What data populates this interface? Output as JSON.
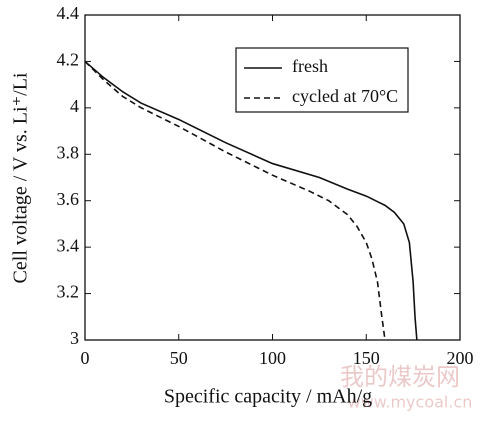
{
  "chart_data": {
    "type": "line",
    "xlabel": "Specific capacity / mAh/g",
    "ylabel": "Cell voltage / V vs. Li⁺/Li",
    "xlim": [
      0,
      200
    ],
    "xticks": [
      0,
      50,
      100,
      150,
      200
    ],
    "ylim": [
      3,
      4.4
    ],
    "yticks": [
      3,
      3.2,
      3.4,
      3.6,
      3.8,
      4,
      4.2,
      4.4
    ],
    "legend": "upper right",
    "series": [
      {
        "name": "fresh",
        "color": "#111111",
        "linestyle": "solid",
        "x": [
          0,
          10,
          20,
          30,
          50,
          75,
          100,
          125,
          140,
          150,
          160,
          165,
          170,
          173,
          175,
          176,
          177
        ],
        "values": [
          4.2,
          4.13,
          4.07,
          4.02,
          3.95,
          3.85,
          3.76,
          3.7,
          3.65,
          3.62,
          3.58,
          3.55,
          3.5,
          3.42,
          3.25,
          3.1,
          3.0
        ]
      },
      {
        "name": "cycled at 70°C",
        "color": "#111111",
        "linestyle": "dashed",
        "x": [
          0,
          10,
          20,
          30,
          50,
          75,
          100,
          120,
          130,
          140,
          145,
          150,
          153,
          156,
          158,
          160
        ],
        "values": [
          4.2,
          4.12,
          4.05,
          4.0,
          3.92,
          3.81,
          3.71,
          3.64,
          3.6,
          3.54,
          3.49,
          3.42,
          3.35,
          3.25,
          3.12,
          3.0
        ]
      }
    ],
    "watermark": [
      "我的煤炭网",
      "www.mycoal.cn"
    ]
  }
}
